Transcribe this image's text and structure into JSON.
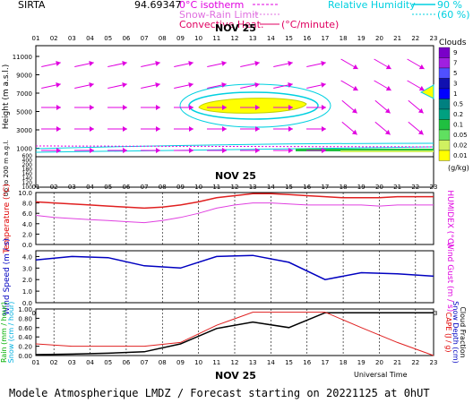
{
  "header": {
    "station": "SIRTA",
    "coords": "94.69347",
    "legend_isotherm": "0°C isotherm",
    "legend_snow_rain": "Snow-Rain Limit",
    "legend_convective": "Convective Heat.",
    "legend_convective_unit": "(°C/minute)",
    "legend_rh": "Relative Humidity",
    "rh90": "90 %",
    "rh60": "(60 %)"
  },
  "hours": [
    "01",
    "02",
    "03",
    "04",
    "05",
    "06",
    "07",
    "08",
    "09",
    "10",
    "11",
    "12",
    "13",
    "14",
    "15",
    "16",
    "17",
    "18",
    "19",
    "20",
    "21",
    "22",
    "23"
  ],
  "date_label": "NOV 25",
  "top_panel": {
    "ylabel": "Height  (m a.s.l.)",
    "ylabel2": "Up to 200 m a.g.l.",
    "yticks_upper": [
      "11000",
      "9000",
      "7000",
      "5000",
      "3000",
      "1000"
    ],
    "yticks_lower": [
      "1000",
      "600",
      "400",
      "200",
      "180",
      "160",
      "140",
      "120",
      "100"
    ],
    "clouds_title": "Clouds",
    "clouds_unit": "(g/kg)",
    "cloud_scale": [
      {
        "label": "9",
        "color": "#7a00c8"
      },
      {
        "label": "7",
        "color": "#a020e0"
      },
      {
        "label": "5",
        "color": "#5050ff"
      },
      {
        "label": "3",
        "color": "#1010b0"
      },
      {
        "label": "1",
        "color": "#0000ff"
      },
      {
        "label": "0.5",
        "color": "#008080"
      },
      {
        "label": "0.2",
        "color": "#00a080"
      },
      {
        "label": "0.1",
        "color": "#20c040"
      },
      {
        "label": "0.05",
        "color": "#60e060"
      },
      {
        "label": "0.02",
        "color": "#d0f060"
      },
      {
        "label": "0.01",
        "color": "#ffff00"
      }
    ]
  },
  "chart_data": [
    {
      "type": "line",
      "panel": "temperature",
      "ylabel": "Temperature (°C)",
      "ylabel_right": "HUMIDEX (°C)",
      "yticks": [
        "10.0",
        "8.0",
        "6.0",
        "4.0",
        "2.0",
        "0.0"
      ],
      "ylim": [
        0,
        10
      ],
      "x": [
        "01",
        "02",
        "03",
        "04",
        "05",
        "06",
        "07",
        "08",
        "09",
        "10",
        "11",
        "12",
        "13",
        "14",
        "15",
        "16",
        "17",
        "18",
        "19",
        "20",
        "21",
        "22",
        "23"
      ],
      "series": [
        {
          "color": "#e02020",
          "values": [
            8.2,
            8.0,
            7.8,
            7.6,
            7.4,
            7.2,
            7.0,
            7.2,
            7.6,
            8.2,
            9.0,
            9.4,
            9.8,
            9.8,
            9.6,
            9.4,
            9.2,
            9.0,
            9.0,
            9.0,
            9.2,
            9.2,
            9.2
          ]
        },
        {
          "color": "#e040e0",
          "values": [
            5.6,
            5.2,
            5.0,
            4.8,
            4.6,
            4.4,
            4.2,
            4.6,
            5.2,
            6.0,
            7.0,
            7.6,
            8.0,
            8.0,
            7.8,
            7.6,
            7.6,
            7.6,
            7.6,
            7.4,
            7.6,
            7.6,
            7.6
          ]
        }
      ]
    },
    {
      "type": "line",
      "panel": "wind",
      "ylabel": "Wind Speed (m / s)",
      "ylabel_right": "Wind Gust (m / s)",
      "yticks": [
        "4.0",
        "3.0",
        "2.0",
        "1.0",
        "0.0"
      ],
      "ylim": [
        0,
        4.5
      ],
      "x": [
        "01",
        "03",
        "05",
        "07",
        "09",
        "11",
        "13",
        "15",
        "17",
        "19",
        "21",
        "23"
      ],
      "series": [
        {
          "color": "#0000c0",
          "values": [
            3.7,
            4.0,
            3.9,
            3.2,
            3.0,
            4.0,
            4.1,
            3.5,
            2.0,
            2.6,
            2.5,
            2.3
          ]
        }
      ]
    },
    {
      "type": "line",
      "panel": "precip",
      "ylabel": "Rain (mm / hour)",
      "ylabel2": "Snow (cm / hour)",
      "ylabel_right": "CAPE (J / g)",
      "ylabel_right2": "Snow Depth (cm)",
      "ylabel_right3": "Cloud Fraction",
      "yticks": [
        "1.00",
        "0.80",
        "0.60",
        "0.40",
        "0.20",
        "0.00"
      ],
      "ylim": [
        0,
        1
      ],
      "x": [
        "01",
        "03",
        "05",
        "07",
        "09",
        "11",
        "13",
        "15",
        "17",
        "19",
        "21",
        "23"
      ],
      "series": [
        {
          "color": "#000000",
          "values": [
            0.02,
            0.03,
            0.05,
            0.08,
            0.25,
            0.58,
            0.72,
            0.6,
            0.92,
            0.92,
            0.92,
            0.92
          ]
        },
        {
          "color": "#e02020",
          "values": [
            0.25,
            0.2,
            0.2,
            0.2,
            0.28,
            0.65,
            0.93,
            0.93,
            0.93,
            0.6,
            0.28,
            0.0
          ]
        }
      ]
    }
  ],
  "footer": {
    "universal_time": "Universal Time",
    "title": "Modele Atmospherique LMDZ / Forecast starting on 20221125 at 0hUT"
  }
}
